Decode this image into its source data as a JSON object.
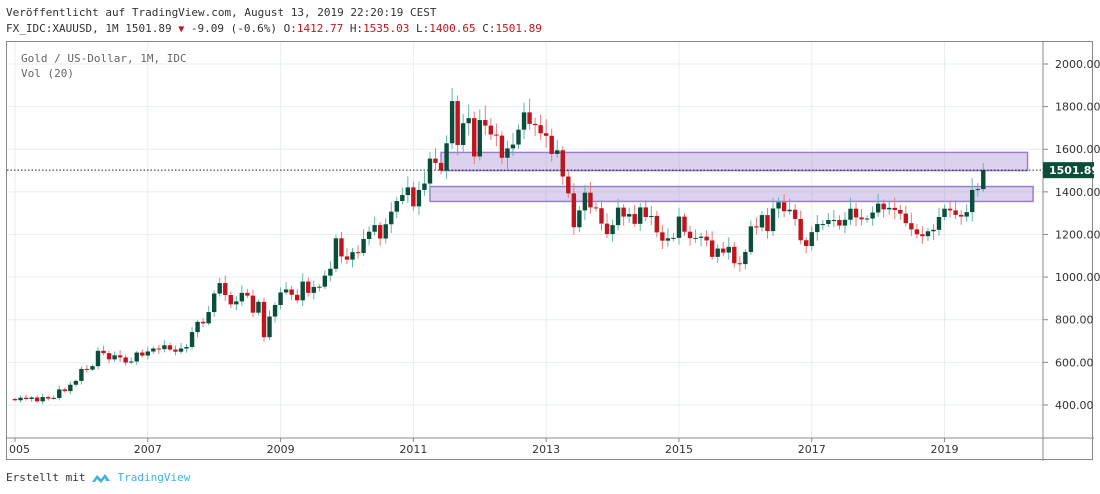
{
  "header": {
    "published": "Veröffentlicht auf TradingView.com, August 13, 2019 22:20:19 CEST",
    "symbol": "FX_IDC:XAUUSD, 1M 1501.89",
    "change": "-9.09 (-0.6%)",
    "o_label": "O:",
    "o": "1412.77",
    "h_label": "H:",
    "h": "1535.03",
    "l_label": "L:",
    "l": "1400.65",
    "c_label": "C:",
    "c": "1501.89"
  },
  "legend": {
    "series": "Gold  / US-Dollar, 1M, IDC",
    "volume": "Vol (20)"
  },
  "footer": {
    "made_with": "Erstellt mit",
    "brand": "TradingView"
  },
  "colors": {
    "up": "#0b4d3b",
    "down": "#c0141e",
    "up_wick": "#5fb8a4",
    "down_wick": "#e87a7a",
    "zone": "#9b7fcf"
  },
  "chart_data": {
    "type": "candlestick",
    "title": "Gold / US-Dollar, 1M, IDC",
    "interval": "1M",
    "start": "2005-01",
    "ylim": [
      250,
      2150
    ],
    "yticks": [
      "400.00",
      "600.00",
      "800.00",
      "1000.00",
      "1200.00",
      "1400.00",
      "1600.00",
      "1800.00",
      "2000.00"
    ],
    "xticks": [
      "005",
      "2007",
      "2009",
      "2011",
      "2013",
      "2015",
      "2017",
      "2019"
    ],
    "last_price": "1501.89",
    "zones": [
      {
        "from": 1500,
        "to": 1585,
        "start": "2011-06",
        "end": "2020-04"
      },
      {
        "from": 1355,
        "to": 1425,
        "start": "2011-04",
        "end": "2020-05"
      }
    ],
    "close": [
      422,
      434,
      428,
      435,
      417,
      437,
      430,
      433,
      473,
      465,
      495,
      513,
      569,
      566,
      582,
      654,
      643,
      614,
      633,
      623,
      599,
      604,
      646,
      632,
      651,
      665,
      662,
      680,
      660,
      650,
      665,
      672,
      742,
      790,
      783,
      836,
      923,
      972,
      916,
      872,
      886,
      926,
      913,
      833,
      884,
      718,
      815,
      869,
      928,
      942,
      917,
      891,
      979,
      926,
      954,
      955,
      1007,
      1039,
      1182,
      1097,
      1082,
      1117,
      1113,
      1179,
      1213,
      1244,
      1181,
      1248,
      1307,
      1357,
      1385,
      1421,
      1332,
      1409,
      1439,
      1556,
      1536,
      1500,
      1628,
      1826,
      1620,
      1722,
      1746,
      1566,
      1737,
      1711,
      1669,
      1664,
      1560,
      1604,
      1622,
      1692,
      1773,
      1719,
      1713,
      1675,
      1663,
      1578,
      1595,
      1472,
      1393,
      1234,
      1313,
      1396,
      1327,
      1323,
      1251,
      1202,
      1244,
      1326,
      1284,
      1296,
      1250,
      1327,
      1282,
      1287,
      1210,
      1171,
      1182,
      1184,
      1284,
      1213,
      1183,
      1184,
      1190,
      1172,
      1095,
      1134,
      1115,
      1142,
      1065,
      1061,
      1118,
      1238,
      1233,
      1291,
      1216,
      1322,
      1351,
      1309,
      1316,
      1273,
      1173,
      1146,
      1211,
      1249,
      1249,
      1268,
      1268,
      1242,
      1269,
      1321,
      1280,
      1271,
      1275,
      1303,
      1345,
      1318,
      1325,
      1315,
      1298,
      1253,
      1224,
      1201,
      1192,
      1215,
      1222,
      1282,
      1321,
      1313,
      1292,
      1284,
      1305,
      1409,
      1413,
      1502
    ],
    "first_open": 428,
    "last": {
      "open": 1412.77,
      "high": 1535.03,
      "low": 1400.65,
      "close": 1501.89
    }
  }
}
